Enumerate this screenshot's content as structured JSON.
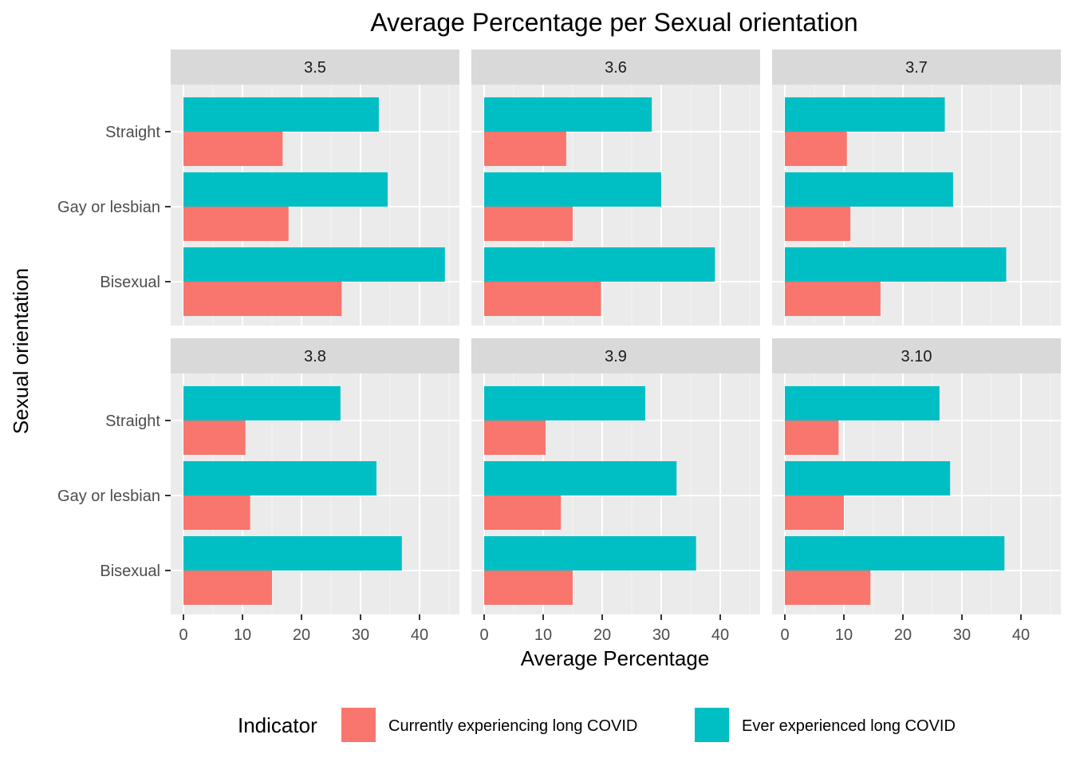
{
  "chart_data": {
    "type": "bar",
    "orientation": "horizontal",
    "title": "Average Percentage per Sexual orientation",
    "xlabel": "Average Percentage",
    "ylabel": "Sexual orientation",
    "xlim": [
      0,
      46
    ],
    "xticks": [
      0,
      10,
      20,
      30,
      40
    ],
    "categories": [
      "Straight",
      "Gay or lesbian",
      "Bisexual"
    ],
    "grid": true,
    "legend": {
      "title": "Indicator",
      "position": "bottom",
      "entries": [
        {
          "name": "Currently experiencing long COVID",
          "color": "#F8766D"
        },
        {
          "name": "Ever experienced long COVID",
          "color": "#00BFC4"
        }
      ]
    },
    "facets": [
      {
        "label": "3.5",
        "series": [
          {
            "name": "Currently experiencing long COVID",
            "values": [
              16.8,
              17.8,
              26.8
            ]
          },
          {
            "name": "Ever experienced long COVID",
            "values": [
              33.1,
              34.6,
              44.3
            ]
          }
        ]
      },
      {
        "label": "3.6",
        "series": [
          {
            "name": "Currently experiencing long COVID",
            "values": [
              13.9,
              15.0,
              19.8
            ]
          },
          {
            "name": "Ever experienced long COVID",
            "values": [
              28.4,
              30.0,
              39.1
            ]
          }
        ]
      },
      {
        "label": "3.7",
        "series": [
          {
            "name": "Currently experiencing long COVID",
            "values": [
              10.5,
              11.1,
              16.2
            ]
          },
          {
            "name": "Ever experienced long COVID",
            "values": [
              27.1,
              28.5,
              37.5
            ]
          }
        ]
      },
      {
        "label": "3.8",
        "series": [
          {
            "name": "Currently experiencing long COVID",
            "values": [
              10.5,
              11.3,
              15.0
            ]
          },
          {
            "name": "Ever experienced long COVID",
            "values": [
              26.6,
              32.7,
              37.0
            ]
          }
        ]
      },
      {
        "label": "3.9",
        "series": [
          {
            "name": "Currently experiencing long COVID",
            "values": [
              10.4,
              13.0,
              15.0
            ]
          },
          {
            "name": "Ever experienced long COVID",
            "values": [
              27.3,
              32.6,
              35.9
            ]
          }
        ]
      },
      {
        "label": "3.10",
        "series": [
          {
            "name": "Currently experiencing long COVID",
            "values": [
              9.1,
              10.0,
              14.5
            ]
          },
          {
            "name": "Ever experienced long COVID",
            "values": [
              26.2,
              28.0,
              37.2
            ]
          }
        ]
      }
    ]
  }
}
